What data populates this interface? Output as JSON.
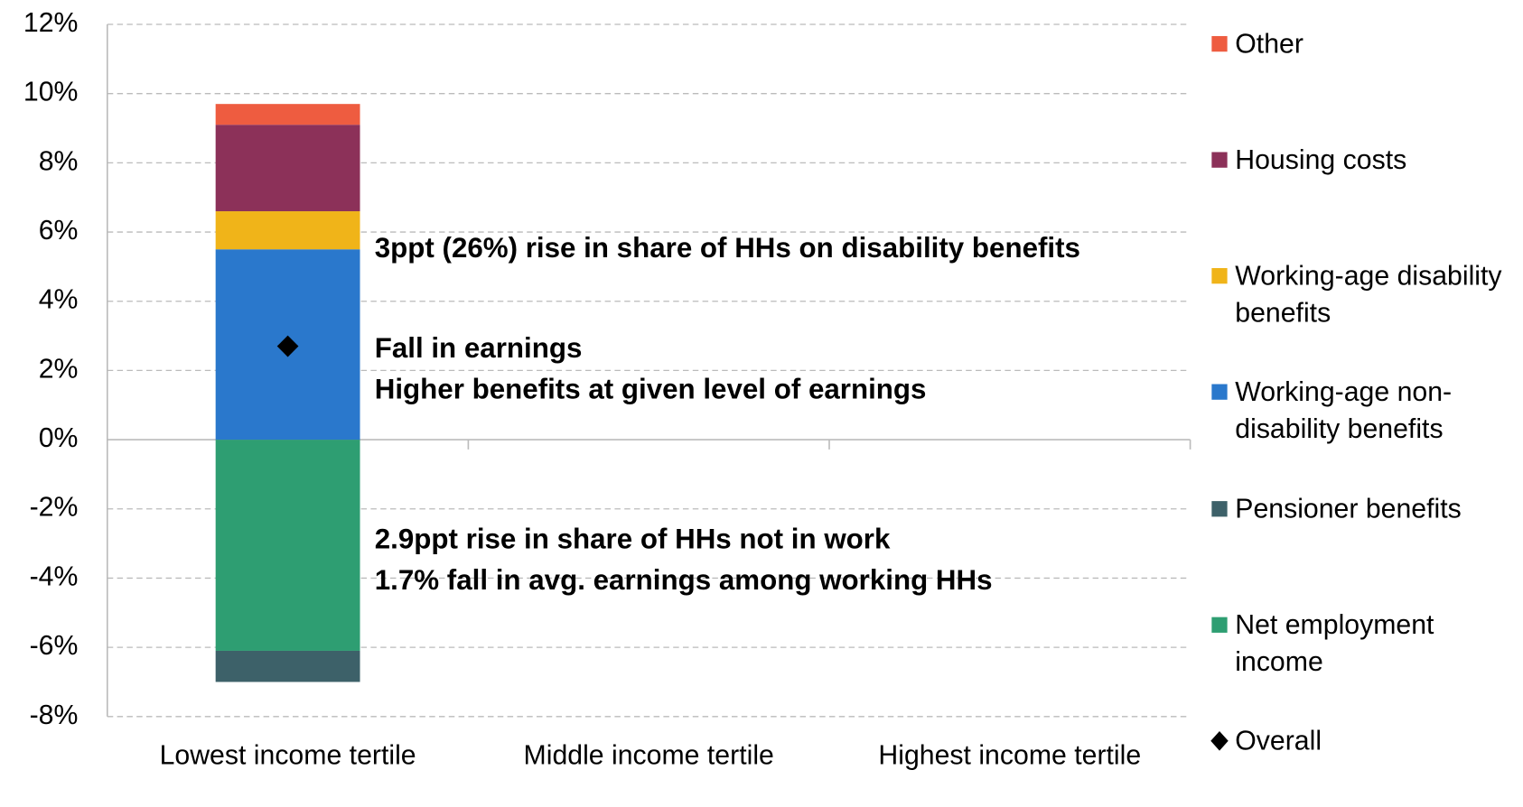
{
  "chart_data": {
    "type": "stacked_bar",
    "categories": [
      "Lowest income tertile",
      "Middle income tertile",
      "Highest income tertile"
    ],
    "series": [
      {
        "name": "Net employment income",
        "color": "#2e9e72",
        "values": [
          -6.1,
          null,
          null
        ]
      },
      {
        "name": "Pensioner benefits",
        "color": "#3d6169",
        "values": [
          -0.9,
          null,
          null
        ]
      },
      {
        "name": "Working-age non-disability benefits",
        "color": "#2a78cc",
        "values": [
          5.5,
          null,
          null
        ]
      },
      {
        "name": "Working-age disability benefits",
        "color": "#f0b419",
        "values": [
          1.1,
          null,
          null
        ]
      },
      {
        "name": "Housing costs",
        "color": "#8c3159",
        "values": [
          2.5,
          null,
          null
        ]
      },
      {
        "name": "Other",
        "color": "#ee5c40",
        "values": [
          0.6,
          null,
          null
        ]
      }
    ],
    "overall": {
      "name": "Overall",
      "color": "#000000",
      "values": [
        2.7,
        null,
        null
      ]
    },
    "ylim": [
      -8,
      12
    ],
    "yticks": [
      {
        "value": -8,
        "label": "-8%"
      },
      {
        "value": -6,
        "label": "-6%"
      },
      {
        "value": -4,
        "label": "-4%"
      },
      {
        "value": -2,
        "label": "-2%"
      },
      {
        "value": 0,
        "label": "0%"
      },
      {
        "value": 2,
        "label": "2%"
      },
      {
        "value": 4,
        "label": "4%"
      },
      {
        "value": 6,
        "label": "6%"
      },
      {
        "value": 8,
        "label": "8%"
      },
      {
        "value": 10,
        "label": "10%"
      },
      {
        "value": 12,
        "label": "12%"
      }
    ],
    "grid": true,
    "legend": "right",
    "annotations": [
      {
        "text": "3ppt (26%) rise in share of HHs on disability benefits",
        "color": "#f0b419"
      },
      {
        "text": "Fall in earnings",
        "color": "#2a78cc"
      },
      {
        "text": "Higher benefits at given level of earnings",
        "color": "#2a78cc"
      },
      {
        "text": "2.9ppt rise in share of HHs not in work",
        "color": "#2e9e72"
      },
      {
        "text": "1.7% fall in avg. earnings among working HHs",
        "color": "#2e9e72"
      }
    ]
  }
}
